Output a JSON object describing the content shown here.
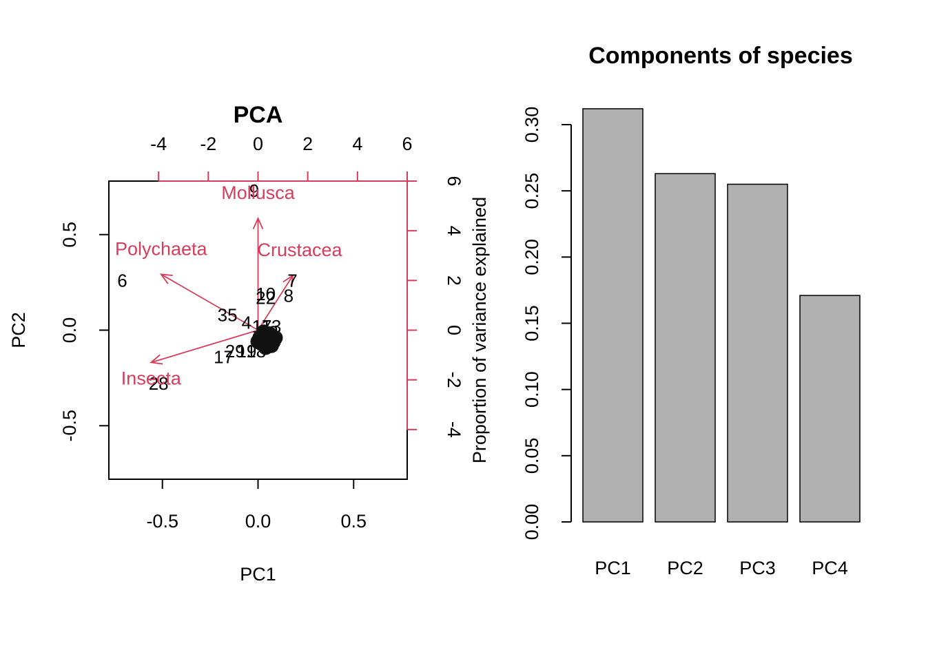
{
  "colors": {
    "arrow": "#D83C5B",
    "bar_fill": "#B0B0B0",
    "bar_stroke": "#000000",
    "text": "#000000"
  },
  "chart_data": [
    {
      "type": "scatter",
      "subtype": "biplot",
      "title": "PCA",
      "xlabel": "PC1",
      "ylabel": "PC2",
      "xlim": [
        -0.78,
        0.78
      ],
      "ylim": [
        -0.78,
        0.78
      ],
      "x_ticks": [
        -0.5,
        0.0,
        0.5
      ],
      "x_tick_labels": [
        "-0.5",
        "0.0",
        "0.5"
      ],
      "y_ticks": [
        -0.5,
        0.0,
        0.5
      ],
      "y_tick_labels": [
        "-0.5",
        "0.0",
        "0.5"
      ],
      "secondary_x_ticks": [
        -4,
        -2,
        0,
        2,
        4,
        6
      ],
      "secondary_x_tick_labels": [
        "-4",
        "-2",
        "0",
        "2",
        "4",
        "6"
      ],
      "secondary_y_ticks": [
        -4,
        -2,
        0,
        2,
        4,
        6
      ],
      "secondary_y_tick_labels": [
        "-4",
        "-2",
        "0",
        "2",
        "4",
        "6"
      ],
      "secondary_ylabel": "Proportion of variance explained",
      "secondary_axis_color": "#D83C5B",
      "secondary_range": [
        -6,
        6
      ],
      "loadings": [
        {
          "name": "Mollusca",
          "x": 0.0,
          "y": 4.5
        },
        {
          "name": "Polychaeta",
          "x": -3.9,
          "y": 2.25
        },
        {
          "name": "Crustacea",
          "x": 1.4,
          "y": 2.2
        },
        {
          "name": "Insecta",
          "x": -4.3,
          "y": -1.3
        }
      ],
      "points": [
        {
          "label": "9",
          "x": -0.02,
          "y": 0.73
        },
        {
          "label": "6",
          "x": -0.71,
          "y": 0.26
        },
        {
          "label": "7",
          "x": 0.18,
          "y": 0.26
        },
        {
          "label": "8",
          "x": 0.16,
          "y": 0.18
        },
        {
          "label": "10",
          "x": 0.04,
          "y": 0.19
        },
        {
          "label": "22",
          "x": 0.04,
          "y": 0.17
        },
        {
          "label": "35",
          "x": -0.16,
          "y": 0.08
        },
        {
          "label": "4",
          "x": -0.06,
          "y": 0.04
        },
        {
          "label": "17",
          "x": 0.02,
          "y": 0.02
        },
        {
          "label": "13",
          "x": 0.07,
          "y": 0.02
        },
        {
          "label": "3",
          "x": 0.08,
          "y": -0.01
        },
        {
          "label": "29",
          "x": -0.12,
          "y": -0.11
        },
        {
          "label": "17",
          "x": -0.18,
          "y": -0.14
        },
        {
          "label": "18",
          "x": -0.01,
          "y": -0.11
        },
        {
          "label": "28",
          "x": -0.52,
          "y": -0.28
        },
        {
          "label": "19",
          "x": -0.06,
          "y": -0.11
        },
        {
          "label": "",
          "x": 0.03,
          "y": -0.03
        },
        {
          "label": "",
          "x": 0.05,
          "y": -0.05
        },
        {
          "label": "",
          "x": 0.02,
          "y": -0.07
        },
        {
          "label": "",
          "x": 0.06,
          "y": -0.02
        },
        {
          "label": "",
          "x": 0.01,
          "y": -0.04
        },
        {
          "label": "",
          "x": 0.08,
          "y": -0.06
        },
        {
          "label": "",
          "x": 0.04,
          "y": -0.09
        },
        {
          "label": "",
          "x": 0.07,
          "y": -0.08
        },
        {
          "label": "",
          "x": 0.09,
          "y": -0.04
        },
        {
          "label": "",
          "x": 0.0,
          "y": -0.06
        },
        {
          "label": "",
          "x": 0.03,
          "y": -0.01
        }
      ]
    },
    {
      "type": "bar",
      "title": "Components of species",
      "xlabel": "",
      "ylabel": "Proportion of variance explained",
      "categories": [
        "PC1",
        "PC2",
        "PC3",
        "PC4"
      ],
      "values": [
        0.312,
        0.263,
        0.255,
        0.171
      ],
      "ylim": [
        0.0,
        0.32
      ],
      "y_ticks": [
        0.0,
        0.05,
        0.1,
        0.15,
        0.2,
        0.25,
        0.3
      ],
      "y_tick_labels": [
        "0.00",
        "0.05",
        "0.10",
        "0.15",
        "0.20",
        "0.25",
        "0.30"
      ]
    }
  ]
}
